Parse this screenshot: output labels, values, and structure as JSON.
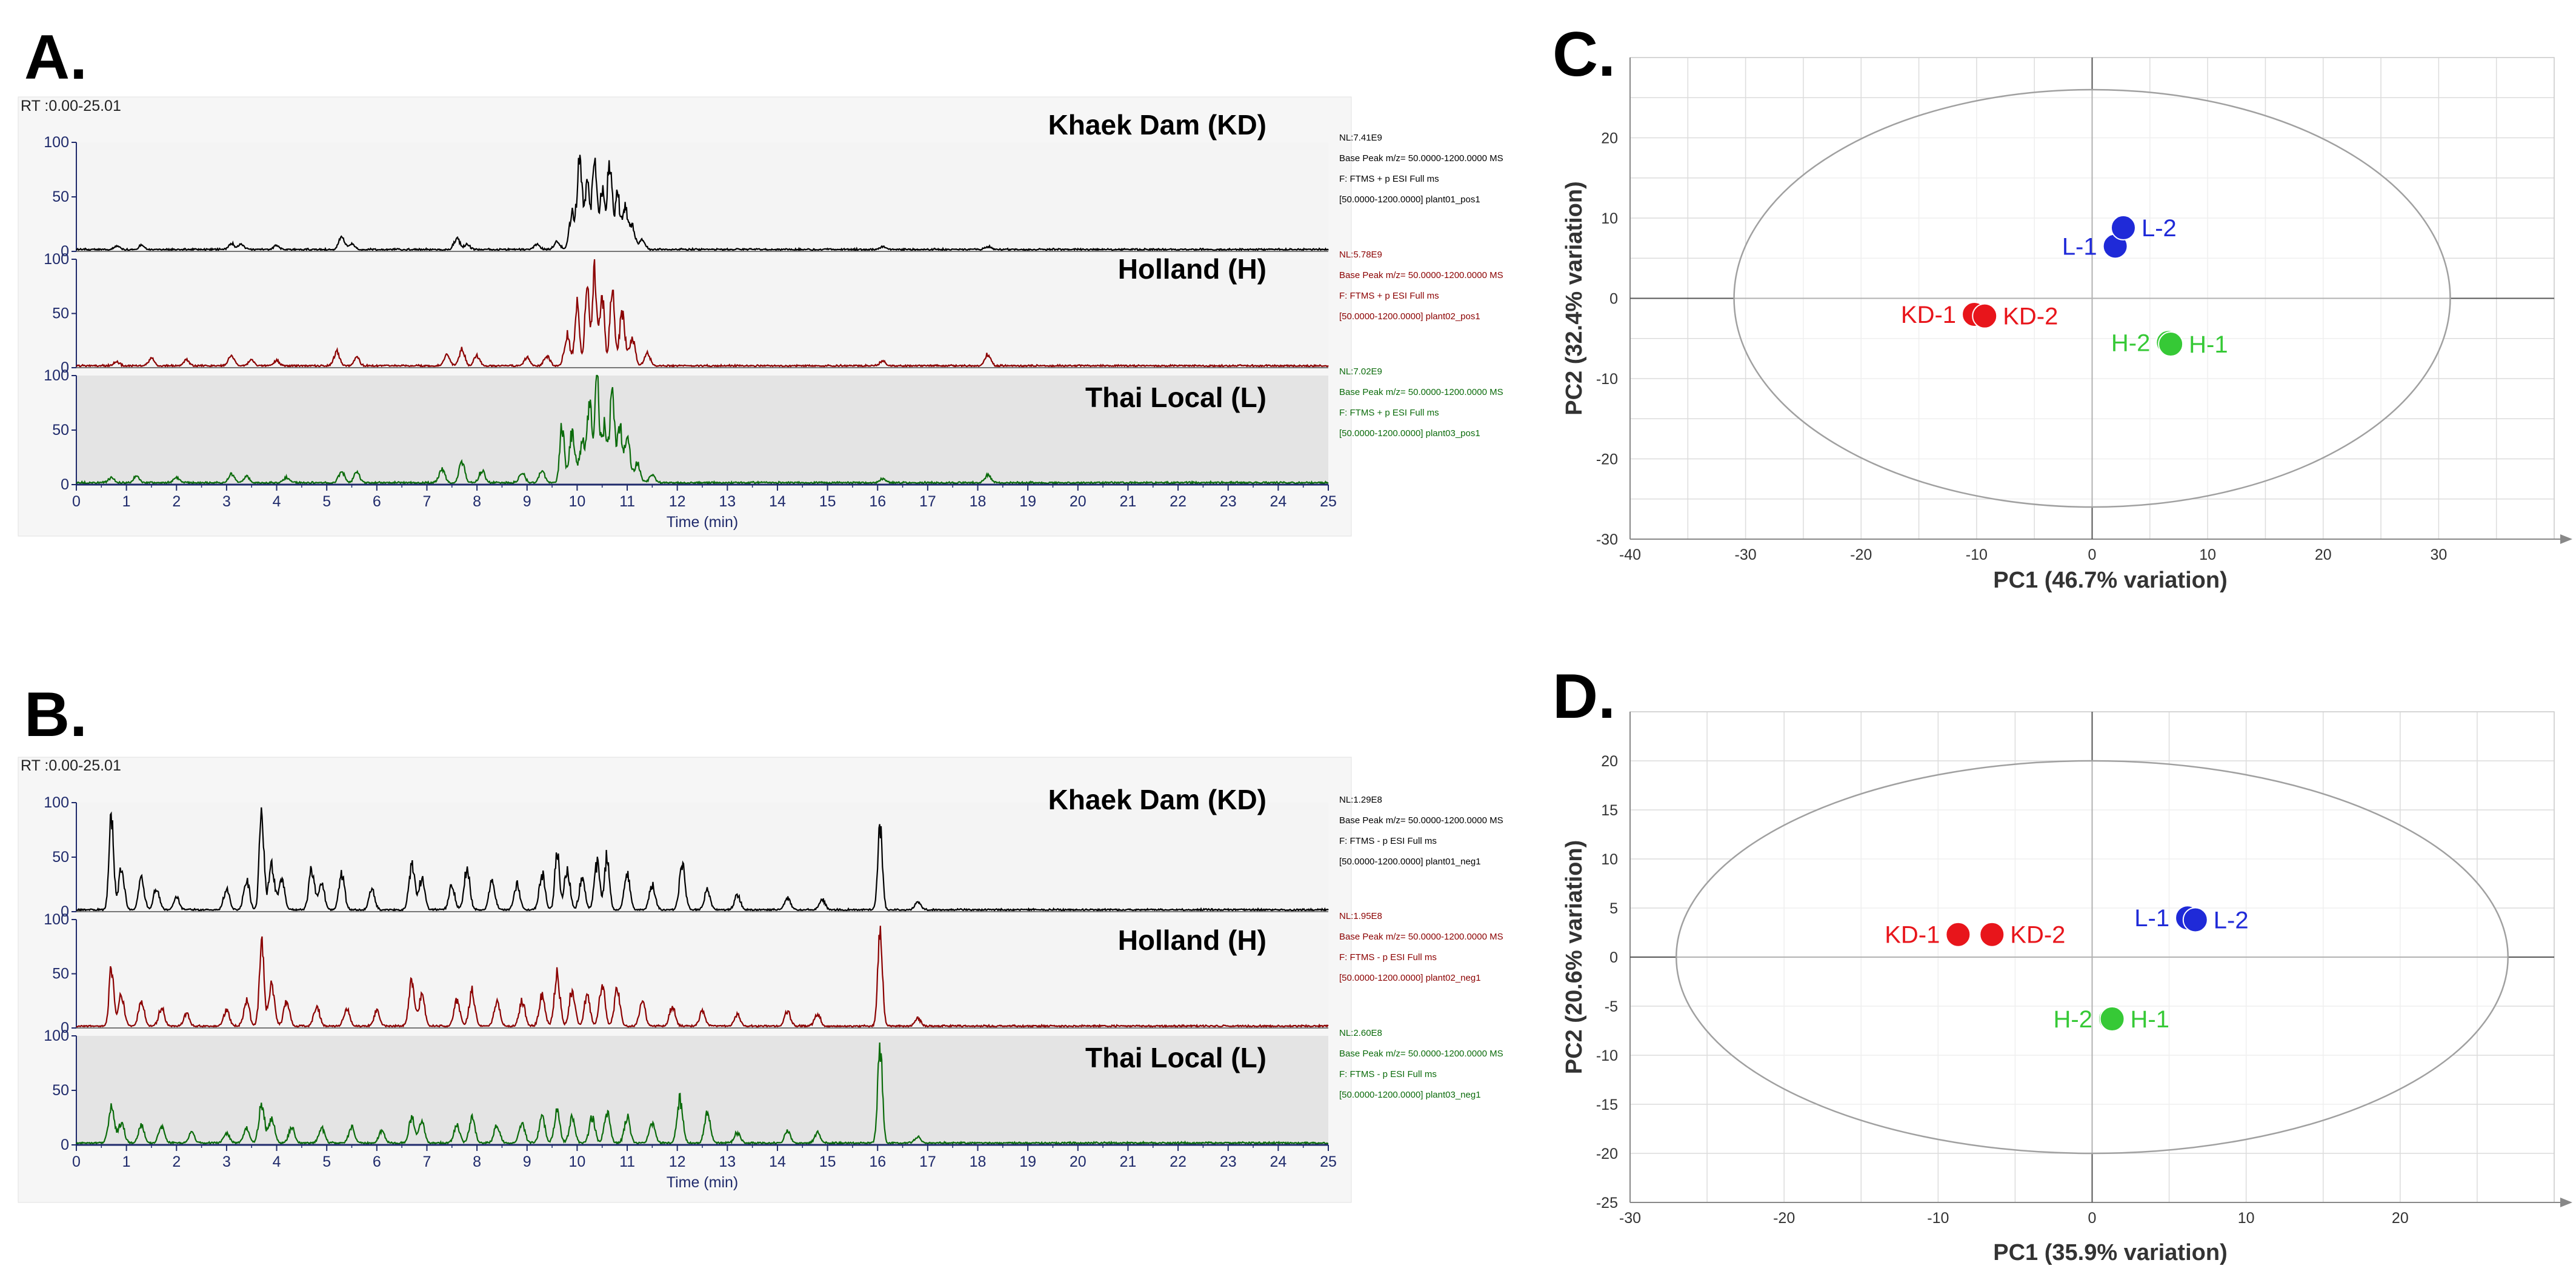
{
  "colors": {
    "kd": "#000000",
    "holland": "#8b0000",
    "local": "#0b6b0b",
    "axis_blue": "#1f2a6b",
    "pca_red": "#e8151b",
    "pca_blue": "#1f2ad8",
    "pca_green": "#36c936"
  },
  "chart_data": [
    {
      "id": "A",
      "type": "line",
      "panel_letter": "A.",
      "rt_range": "RT :0.00-25.01",
      "xlabel": "Time (min)",
      "xlim": [
        0,
        25
      ],
      "x_ticks": [
        "0",
        "1",
        "2",
        "3",
        "4",
        "5",
        "6",
        "7",
        "8",
        "9",
        "10",
        "11",
        "12",
        "13",
        "14",
        "15",
        "16",
        "17",
        "18",
        "19",
        "20",
        "21",
        "22",
        "23",
        "24",
        "25"
      ],
      "y_ticks": [
        "0",
        "50",
        "100"
      ],
      "ylim": [
        0,
        100
      ],
      "series": [
        {
          "name": "Khaek Dam (KD)",
          "color_key": "kd",
          "nl": "NL:7.41E9",
          "meta": [
            "Base Peak m/z= 50.0000-1200.0000 MS",
            "F: FTMS + p ESI Full ms",
            "[50.0000-1200.0000]  plant01_pos1"
          ],
          "peaks": [
            [
              0.8,
              3
            ],
            [
              1.3,
              4
            ],
            [
              3.1,
              6
            ],
            [
              3.3,
              5
            ],
            [
              4.0,
              4
            ],
            [
              5.3,
              12
            ],
            [
              5.5,
              6
            ],
            [
              7.6,
              11
            ],
            [
              7.8,
              5
            ],
            [
              9.2,
              5
            ],
            [
              9.6,
              8
            ],
            [
              9.9,
              35
            ],
            [
              10.05,
              98
            ],
            [
              10.2,
              70
            ],
            [
              10.35,
              95
            ],
            [
              10.5,
              60
            ],
            [
              10.65,
              88
            ],
            [
              10.8,
              55
            ],
            [
              10.95,
              40
            ],
            [
              11.1,
              22
            ],
            [
              11.3,
              10
            ],
            [
              16.1,
              3
            ],
            [
              18.2,
              3
            ]
          ]
        },
        {
          "name": "Holland (H)",
          "color_key": "holland",
          "nl": "NL:5.78E9",
          "meta": [
            "Base Peak m/z= 50.0000-1200.0000 MS",
            "F: FTMS + p ESI Full ms",
            "[50.0000-1200.0000]  plant02_pos1"
          ],
          "peaks": [
            [
              0.8,
              4
            ],
            [
              1.5,
              8
            ],
            [
              2.2,
              6
            ],
            [
              3.1,
              10
            ],
            [
              3.5,
              6
            ],
            [
              4.0,
              5
            ],
            [
              5.2,
              14
            ],
            [
              5.6,
              8
            ],
            [
              7.4,
              12
            ],
            [
              7.7,
              16
            ],
            [
              8.0,
              10
            ],
            [
              9.0,
              8
            ],
            [
              9.4,
              10
            ],
            [
              9.8,
              30
            ],
            [
              10.0,
              60
            ],
            [
              10.2,
              75
            ],
            [
              10.35,
              92
            ],
            [
              10.5,
              70
            ],
            [
              10.7,
              80
            ],
            [
              10.9,
              50
            ],
            [
              11.1,
              28
            ],
            [
              11.4,
              12
            ],
            [
              16.1,
              5
            ],
            [
              18.2,
              12
            ]
          ]
        },
        {
          "name": "Thai Local (L)",
          "color_key": "local",
          "nl": "NL:7.02E9",
          "meta": [
            "Base Peak m/z= 50.0000-1200.0000 MS",
            "F: FTMS + p ESI Full ms",
            "[50.0000-1200.0000]  plant03_pos1"
          ],
          "peaks": [
            [
              0.7,
              5
            ],
            [
              1.2,
              6
            ],
            [
              2.0,
              5
            ],
            [
              3.1,
              9
            ],
            [
              3.4,
              6
            ],
            [
              4.2,
              5
            ],
            [
              5.3,
              12
            ],
            [
              5.6,
              10
            ],
            [
              7.3,
              14
            ],
            [
              7.7,
              20
            ],
            [
              8.1,
              12
            ],
            [
              8.9,
              10
            ],
            [
              9.3,
              12
            ],
            [
              9.7,
              55
            ],
            [
              9.9,
              48
            ],
            [
              10.1,
              40
            ],
            [
              10.25,
              80
            ],
            [
              10.4,
              98
            ],
            [
              10.55,
              60
            ],
            [
              10.7,
              90
            ],
            [
              10.85,
              55
            ],
            [
              11.0,
              45
            ],
            [
              11.2,
              20
            ],
            [
              11.5,
              8
            ],
            [
              16.1,
              4
            ],
            [
              18.2,
              8
            ]
          ]
        }
      ]
    },
    {
      "id": "B",
      "type": "line",
      "panel_letter": "B.",
      "rt_range": "RT :0.00-25.01",
      "xlabel": "Time (min)",
      "xlim": [
        0,
        25
      ],
      "x_ticks": [
        "0",
        "1",
        "2",
        "3",
        "4",
        "5",
        "6",
        "7",
        "8",
        "9",
        "10",
        "11",
        "12",
        "13",
        "14",
        "15",
        "16",
        "17",
        "18",
        "19",
        "20",
        "21",
        "22",
        "23",
        "24",
        "25"
      ],
      "y_ticks": [
        "0",
        "50",
        "100"
      ],
      "ylim": [
        0,
        100
      ],
      "series": [
        {
          "name": "Khaek Dam (KD)",
          "color_key": "kd",
          "nl": "NL:1.29E8",
          "meta": [
            "Base Peak m/z= 50.0000-1200.0000 MS",
            "F: FTMS - p ESI Full ms",
            "[50.0000-1200.0000]  plant01_neg1"
          ],
          "peaks": [
            [
              0.7,
              90
            ],
            [
              0.9,
              40
            ],
            [
              1.3,
              30
            ],
            [
              1.6,
              22
            ],
            [
              2.0,
              12
            ],
            [
              3.0,
              20
            ],
            [
              3.4,
              30
            ],
            [
              3.7,
              95
            ],
            [
              3.9,
              45
            ],
            [
              4.1,
              30
            ],
            [
              4.7,
              40
            ],
            [
              4.9,
              25
            ],
            [
              5.3,
              35
            ],
            [
              5.9,
              20
            ],
            [
              6.7,
              45
            ],
            [
              6.9,
              30
            ],
            [
              7.5,
              25
            ],
            [
              7.8,
              40
            ],
            [
              8.3,
              30
            ],
            [
              8.8,
              25
            ],
            [
              9.3,
              35
            ],
            [
              9.6,
              55
            ],
            [
              9.8,
              40
            ],
            [
              10.1,
              30
            ],
            [
              10.4,
              45
            ],
            [
              10.6,
              55
            ],
            [
              11.0,
              35
            ],
            [
              11.5,
              25
            ],
            [
              12.1,
              45
            ],
            [
              12.6,
              20
            ],
            [
              13.2,
              15
            ],
            [
              14.2,
              12
            ],
            [
              14.9,
              10
            ],
            [
              16.05,
              82
            ],
            [
              16.8,
              8
            ]
          ]
        },
        {
          "name": "Holland (H)",
          "color_key": "holland",
          "nl": "NL:1.95E8",
          "meta": [
            "Base Peak m/z= 50.0000-1200.0000 MS",
            "F: FTMS - p ESI Full ms",
            "[50.0000-1200.0000]  plant02_neg1"
          ],
          "peaks": [
            [
              0.7,
              55
            ],
            [
              0.9,
              30
            ],
            [
              1.3,
              25
            ],
            [
              1.7,
              18
            ],
            [
              2.2,
              12
            ],
            [
              3.0,
              15
            ],
            [
              3.4,
              25
            ],
            [
              3.7,
              82
            ],
            [
              3.9,
              40
            ],
            [
              4.2,
              25
            ],
            [
              4.8,
              20
            ],
            [
              5.4,
              18
            ],
            [
              6.0,
              15
            ],
            [
              6.7,
              45
            ],
            [
              6.9,
              30
            ],
            [
              7.6,
              25
            ],
            [
              7.9,
              35
            ],
            [
              8.4,
              25
            ],
            [
              8.9,
              25
            ],
            [
              9.3,
              30
            ],
            [
              9.6,
              50
            ],
            [
              9.9,
              35
            ],
            [
              10.2,
              30
            ],
            [
              10.5,
              40
            ],
            [
              10.8,
              35
            ],
            [
              11.3,
              25
            ],
            [
              11.9,
              20
            ],
            [
              12.5,
              15
            ],
            [
              13.2,
              12
            ],
            [
              14.2,
              15
            ],
            [
              14.8,
              12
            ],
            [
              16.05,
              98
            ],
            [
              16.8,
              8
            ]
          ]
        },
        {
          "name": "Thai Local (L)",
          "color_key": "local",
          "nl": "NL:2.60E8",
          "meta": [
            "Base Peak m/z= 50.0000-1200.0000 MS",
            "F: FTMS - p ESI Full ms",
            "[50.0000-1200.0000]  plant03_neg1"
          ],
          "peaks": [
            [
              0.7,
              38
            ],
            [
              0.9,
              20
            ],
            [
              1.3,
              18
            ],
            [
              1.7,
              15
            ],
            [
              2.3,
              10
            ],
            [
              3.0,
              10
            ],
            [
              3.4,
              15
            ],
            [
              3.7,
              38
            ],
            [
              3.9,
              25
            ],
            [
              4.3,
              15
            ],
            [
              4.9,
              15
            ],
            [
              5.5,
              15
            ],
            [
              6.1,
              12
            ],
            [
              6.7,
              25
            ],
            [
              6.9,
              20
            ],
            [
              7.6,
              18
            ],
            [
              7.9,
              25
            ],
            [
              8.4,
              18
            ],
            [
              8.9,
              20
            ],
            [
              9.3,
              25
            ],
            [
              9.6,
              30
            ],
            [
              9.9,
              25
            ],
            [
              10.3,
              25
            ],
            [
              10.6,
              30
            ],
            [
              11.0,
              25
            ],
            [
              11.5,
              20
            ],
            [
              12.05,
              42
            ],
            [
              12.6,
              30
            ],
            [
              13.2,
              10
            ],
            [
              14.2,
              12
            ],
            [
              14.8,
              10
            ],
            [
              16.05,
              95
            ],
            [
              16.8,
              6
            ]
          ]
        }
      ]
    },
    {
      "id": "C",
      "type": "scatter",
      "panel_letter": "C.",
      "xlabel": "PC1 (46.7% variation)",
      "ylabel": "PC2 (32.4% variation)",
      "xlim": [
        -40,
        40
      ],
      "ylim": [
        -30,
        30
      ],
      "x_ticks": [
        -40,
        -30,
        -20,
        -10,
        0,
        10,
        20,
        30
      ],
      "y_ticks": [
        -30,
        -20,
        -10,
        0,
        10,
        20
      ],
      "ellipse": {
        "cx": 0,
        "cy": 0,
        "rx": 31,
        "ry": 26
      },
      "points": [
        {
          "label": "KD-1",
          "x": -10.2,
          "y": -2.0,
          "color_key": "pca_red",
          "side": "left"
        },
        {
          "label": "KD-2",
          "x": -9.3,
          "y": -2.2,
          "color_key": "pca_red",
          "side": "right"
        },
        {
          "label": "L-1",
          "x": 2.0,
          "y": 6.5,
          "color_key": "pca_blue",
          "side": "left"
        },
        {
          "label": "L-2",
          "x": 2.7,
          "y": 8.8,
          "color_key": "pca_blue",
          "side": "right"
        },
        {
          "label": "H-2",
          "x": 6.6,
          "y": -5.5,
          "color_key": "pca_green",
          "side": "left"
        },
        {
          "label": "H-1",
          "x": 6.8,
          "y": -5.7,
          "color_key": "pca_green",
          "side": "right"
        }
      ]
    },
    {
      "id": "D",
      "type": "scatter",
      "panel_letter": "D.",
      "xlabel": "PC1 (35.9% variation)",
      "ylabel": "PC2 (20.6% variation)",
      "xlim": [
        -30,
        30
      ],
      "ylim": [
        -25,
        25
      ],
      "x_ticks": [
        -30,
        -20,
        -10,
        0,
        10,
        20
      ],
      "y_ticks": [
        -25,
        -20,
        -15,
        -10,
        -5,
        0,
        5,
        10,
        15,
        20
      ],
      "ellipse": {
        "cx": 0,
        "cy": 0,
        "rx": 27,
        "ry": 20
      },
      "points": [
        {
          "label": "KD-1",
          "x": -8.7,
          "y": 2.3,
          "color_key": "pca_red",
          "side": "left"
        },
        {
          "label": "KD-2",
          "x": -6.5,
          "y": 2.3,
          "color_key": "pca_red",
          "side": "right"
        },
        {
          "label": "L-1",
          "x": 6.2,
          "y": 4.0,
          "color_key": "pca_blue",
          "side": "left"
        },
        {
          "label": "L-2",
          "x": 6.7,
          "y": 3.8,
          "color_key": "pca_blue",
          "side": "right"
        },
        {
          "label": "H-2",
          "x": 1.2,
          "y": -6.3,
          "color_key": "pca_green",
          "side": "left"
        },
        {
          "label": "H-1",
          "x": 1.3,
          "y": -6.3,
          "color_key": "pca_green",
          "side": "right"
        }
      ]
    }
  ]
}
